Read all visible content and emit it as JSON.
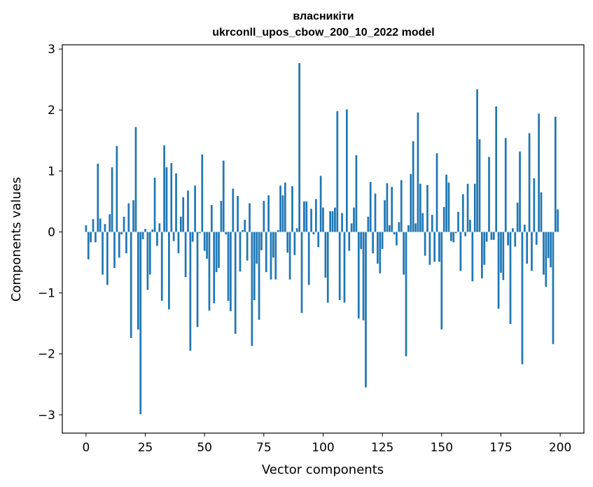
{
  "chart_data": {
    "type": "bar",
    "title": "власникіти",
    "subtitle": "ukrconll_upos_cbow_200_10_2022 model",
    "xlabel": "Vector components",
    "ylabel": "Components values",
    "xlim": [
      -10,
      210
    ],
    "ylim": [
      -3.3,
      3.07
    ],
    "xticks": [
      0,
      25,
      50,
      75,
      100,
      125,
      150,
      175,
      200
    ],
    "yticks": [
      -3,
      -2,
      -1,
      0,
      1,
      2,
      3
    ],
    "ytick_labels": [
      "−3",
      "−2",
      "−1",
      "0",
      "1",
      "2",
      "3"
    ],
    "bar_color": "#1f77b4",
    "grid": false,
    "values": [
      0.11,
      -0.45,
      -0.17,
      0.21,
      -0.17,
      1.12,
      0.22,
      -0.7,
      0.13,
      -0.87,
      0.29,
      1.06,
      -0.59,
      1.41,
      -0.42,
      -0.04,
      0.25,
      -0.35,
      0.47,
      -1.74,
      0.52,
      1.72,
      -1.6,
      -2.99,
      -0.12,
      0.05,
      -0.95,
      -0.7,
      0.04,
      0.89,
      -0.23,
      0.14,
      -1.13,
      1.42,
      1.06,
      -1.27,
      1.13,
      -0.15,
      0.96,
      -0.35,
      0.25,
      0.57,
      -0.74,
      0.68,
      -1.95,
      -0.16,
      0.76,
      -1.56,
      -0.02,
      1.27,
      -0.31,
      -0.44,
      -1.29,
      0.44,
      -1.17,
      -0.66,
      -0.59,
      0.51,
      1.17,
      -0.04,
      -1.13,
      -1.3,
      0.71,
      -1.67,
      0.59,
      -0.65,
      0.03,
      0.2,
      -0.47,
      0.47,
      -1.87,
      -1.12,
      -0.52,
      -1.44,
      -0.3,
      0.51,
      -0.66,
      0.6,
      -0.78,
      -0.42,
      -0.78,
      0.03,
      0.76,
      0.6,
      0.81,
      -0.34,
      -0.78,
      0.75,
      -0.38,
      0.06,
      2.77,
      -1.33,
      0.5,
      0.5,
      -0.87,
      0.38,
      -0.04,
      0.54,
      -0.25,
      0.92,
      0.4,
      -0.75,
      -1.16,
      0.34,
      0.34,
      0.4,
      1.98,
      -1.12,
      0.31,
      -1.16,
      2.01,
      -0.31,
      0.14,
      0.4,
      1.26,
      -1.42,
      -0.28,
      -1.45,
      -2.55,
      0.25,
      0.82,
      -0.35,
      0.63,
      -0.52,
      -0.68,
      -0.28,
      0.52,
      0.8,
      0.11,
      0.74,
      -0.04,
      -0.22,
      0.16,
      0.85,
      -0.7,
      -2.04,
      0.11,
      0.95,
      1.49,
      0.14,
      1.96,
      0.79,
      0.31,
      -0.39,
      0.77,
      -0.54,
      0.28,
      -0.49,
      1.29,
      -0.49,
      -1.6,
      0.41,
      0.94,
      0.81,
      -0.15,
      -0.17,
      -0.02,
      0.33,
      -0.64,
      0.62,
      -0.07,
      0.79,
      0.2,
      -0.81,
      0.79,
      2.34,
      1.52,
      -0.76,
      -0.54,
      -0.16,
      1.23,
      -0.13,
      -0.13,
      2.06,
      -1.26,
      -0.67,
      -0.79,
      1.54,
      -0.22,
      -1.51,
      0.06,
      -0.24,
      0.48,
      1.32,
      -2.17,
      0.12,
      -0.52,
      1.62,
      -0.64,
      0.88,
      -0.21,
      1.94,
      0.65,
      -0.7,
      -0.9,
      -0.43,
      -0.58,
      -1.84,
      1.89,
      0.37
    ]
  }
}
